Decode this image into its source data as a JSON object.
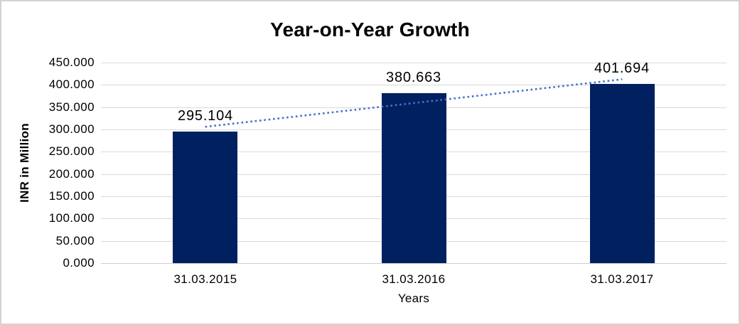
{
  "chart_data": {
    "type": "bar",
    "title": "Year-on-Year Growth",
    "categories": [
      "31.03.2015",
      "31.03.2016",
      "31.03.2017"
    ],
    "values": [
      295.104,
      380.663,
      401.694
    ],
    "data_labels": [
      "295.104",
      "380.663",
      "401.694"
    ],
    "xlabel": "Years",
    "ylabel": "INR in Million",
    "ylim": [
      0,
      450
    ],
    "ytick_step": 50,
    "ytick_labels": [
      "0.000",
      "50.000",
      "100.000",
      "150.000",
      "200.000",
      "250.000",
      "300.000",
      "350.000",
      "400.000",
      "450.000"
    ],
    "grid": true,
    "legend": "none",
    "trendline": {
      "type": "linear",
      "style": "dotted",
      "color": "#4472C4"
    },
    "colors": {
      "bar": "#002060",
      "trendline": "#4472C4",
      "gridline": "#D9D9D9",
      "axis_line": "#CFCFCF",
      "text": "#000000",
      "chart_border": "#D2D2D2",
      "background": "#FFFFFF"
    }
  }
}
